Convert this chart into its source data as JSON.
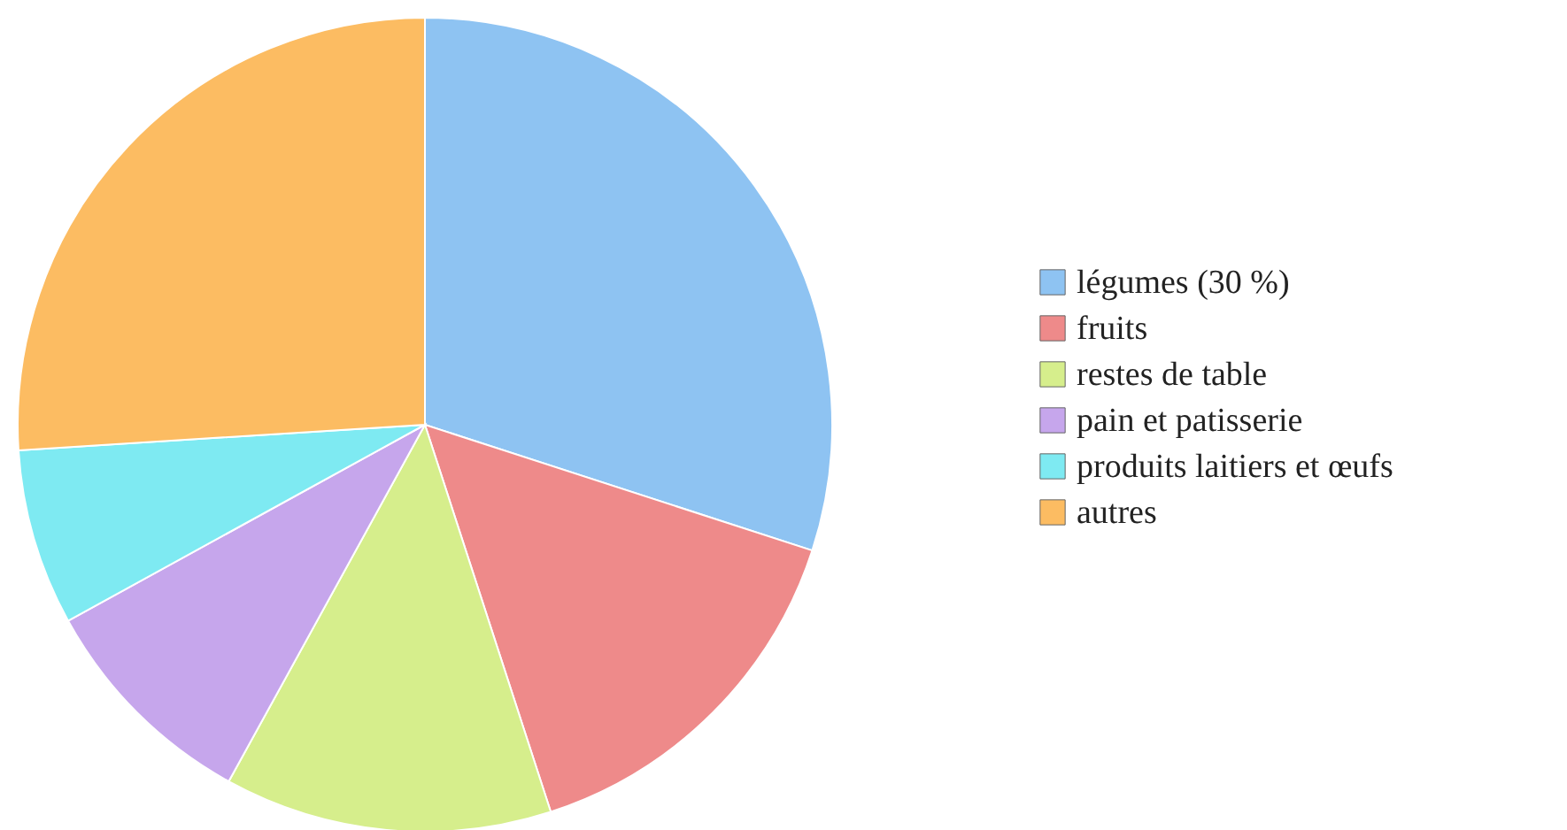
{
  "chart_data": {
    "type": "pie",
    "categories": [
      "légumes (30 %)",
      "fruits",
      "restes de table",
      "pain et patisserie",
      "produits laitiers et œufs",
      "autres"
    ],
    "values": [
      30,
      15,
      13,
      9,
      7,
      26
    ],
    "colors": [
      "#8ec3f2",
      "#ee8a8a",
      "#d6ee8c",
      "#c6a6ec",
      "#7eeaf2",
      "#fcbc62"
    ],
    "legend": "right"
  }
}
